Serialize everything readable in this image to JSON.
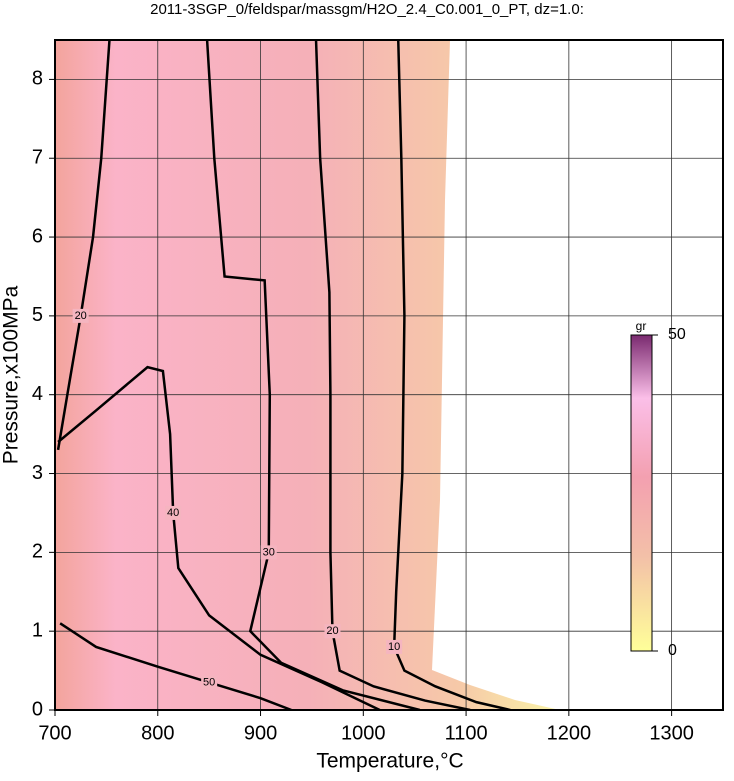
{
  "chart_data": {
    "type": "contour",
    "title": "2011-3SGP_0/feldspar/massgm/H2O_2.4_C0.001_0_PT, dz=1.0:",
    "xlabel": "Temperature,°C",
    "ylabel": "Pressure,x100MPa",
    "xlim": [
      700,
      1350
    ],
    "ylim": [
      0,
      8.5
    ],
    "xticks": [
      700,
      800,
      900,
      1000,
      1100,
      1200,
      1300
    ],
    "yticks": [
      0,
      1,
      2,
      3,
      4,
      5,
      6,
      7,
      8
    ],
    "grid": true,
    "contours": [
      {
        "level": 10,
        "x": [
          1034,
          1037,
          1040,
          1038,
          1032,
          1030,
          1040,
          1070,
          1110,
          1143
        ],
        "y": [
          8.5,
          7,
          5,
          3,
          1.5,
          0.8,
          0.5,
          0.3,
          0.1,
          0
        ]
      },
      {
        "level": 20,
        "x": [
          954,
          958,
          967,
          968,
          968,
          970,
          977,
          1010,
          1060,
          1104
        ],
        "y": [
          8.5,
          7,
          5.3,
          4,
          2,
          1,
          0.5,
          0.3,
          0.12,
          0
        ]
      },
      {
        "level": 30,
        "x": [
          848,
          855,
          865,
          904,
          909,
          908,
          890,
          920,
          980,
          1055
        ],
        "y": [
          8.5,
          7,
          5.5,
          5.45,
          4,
          2,
          1,
          0.6,
          0.25,
          0
        ]
      },
      {
        "level": 20,
        "x": [
          753,
          745,
          737,
          725,
          712,
          703
        ],
        "y": [
          8.5,
          7,
          6,
          5,
          4,
          3.3
        ]
      },
      {
        "level": 40,
        "x": [
          703,
          740,
          790,
          805,
          812,
          815,
          820,
          850,
          900,
          960,
          1016
        ],
        "y": [
          3.4,
          3.8,
          4.35,
          4.3,
          3.5,
          2.5,
          1.8,
          1.2,
          0.7,
          0.35,
          0
        ]
      },
      {
        "level": 50,
        "x": [
          705,
          740,
          800,
          850,
          900,
          930
        ],
        "y": [
          1.1,
          0.8,
          0.55,
          0.35,
          0.15,
          0
        ]
      }
    ],
    "colorbar_label": "gr",
    "clim": [
      0,
      50
    ],
    "colorbar_ticks": [
      0,
      50
    ]
  }
}
